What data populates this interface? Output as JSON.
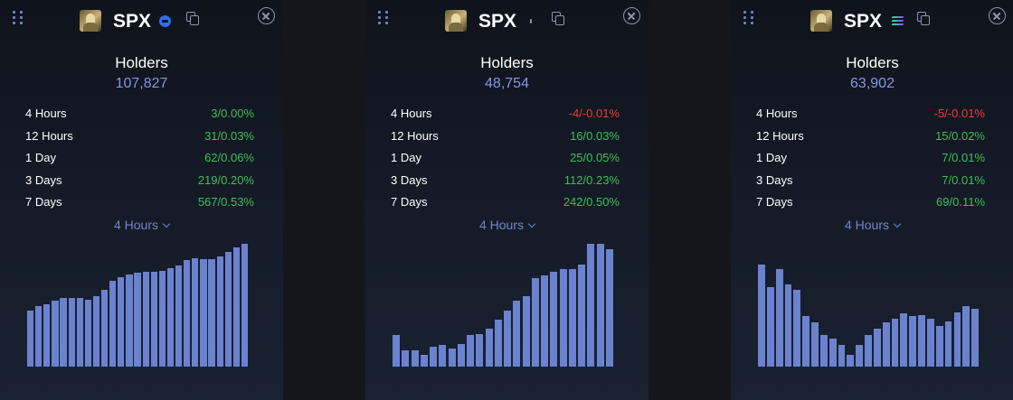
{
  "panels": [
    {
      "symbol": "SPX",
      "chain_icon": "base-chain-icon",
      "title": "Holders",
      "total": "107,827",
      "rows": [
        {
          "label": "4 Hours",
          "value": "3/0.00%",
          "dir": "up"
        },
        {
          "label": "12 Hours",
          "value": "31/0.03%",
          "dir": "up"
        },
        {
          "label": "1 Day",
          "value": "62/0.06%",
          "dir": "up"
        },
        {
          "label": "3 Days",
          "value": "219/0.20%",
          "dir": "up"
        },
        {
          "label": "7 Days",
          "value": "567/0.53%",
          "dir": "up"
        }
      ],
      "timeframe": "4 Hours",
      "bars": [
        0.44,
        0.48,
        0.49,
        0.52,
        0.54,
        0.54,
        0.54,
        0.53,
        0.56,
        0.61,
        0.68,
        0.71,
        0.73,
        0.74,
        0.75,
        0.75,
        0.76,
        0.78,
        0.8,
        0.84,
        0.86,
        0.85,
        0.85,
        0.87,
        0.91,
        0.94,
        0.97
      ]
    },
    {
      "symbol": "SPX",
      "chain_icon": "ethereum-icon",
      "title": "Holders",
      "total": "48,754",
      "rows": [
        {
          "label": "4 Hours",
          "value": "-4/-0.01%",
          "dir": "down"
        },
        {
          "label": "12 Hours",
          "value": "16/0.03%",
          "dir": "up"
        },
        {
          "label": "1 Day",
          "value": "25/0.05%",
          "dir": "up"
        },
        {
          "label": "3 Days",
          "value": "112/0.23%",
          "dir": "up"
        },
        {
          "label": "7 Days",
          "value": "242/0.50%",
          "dir": "up"
        }
      ],
      "timeframe": "4 Hours",
      "bars": [
        0.25,
        0.13,
        0.13,
        0.09,
        0.16,
        0.17,
        0.14,
        0.18,
        0.25,
        0.26,
        0.3,
        0.37,
        0.44,
        0.52,
        0.56,
        0.7,
        0.72,
        0.75,
        0.77,
        0.77,
        0.81,
        0.97,
        0.97,
        0.93
      ]
    },
    {
      "symbol": "SPX",
      "chain_icon": "solana-icon",
      "title": "Holders",
      "total": "63,902",
      "rows": [
        {
          "label": "4 Hours",
          "value": "-5/-0.01%",
          "dir": "down"
        },
        {
          "label": "12 Hours",
          "value": "15/0.02%",
          "dir": "up"
        },
        {
          "label": "1 Day",
          "value": "7/0.01%",
          "dir": "up"
        },
        {
          "label": "3 Days",
          "value": "7/0.01%",
          "dir": "up"
        },
        {
          "label": "7 Days",
          "value": "69/0.11%",
          "dir": "up"
        }
      ],
      "timeframe": "4 Hours",
      "bars": [
        0.81,
        0.63,
        0.77,
        0.65,
        0.61,
        0.4,
        0.35,
        0.25,
        0.22,
        0.17,
        0.09,
        0.17,
        0.25,
        0.3,
        0.35,
        0.38,
        0.42,
        0.4,
        0.41,
        0.38,
        0.32,
        0.36,
        0.43,
        0.48,
        0.46
      ]
    }
  ]
}
